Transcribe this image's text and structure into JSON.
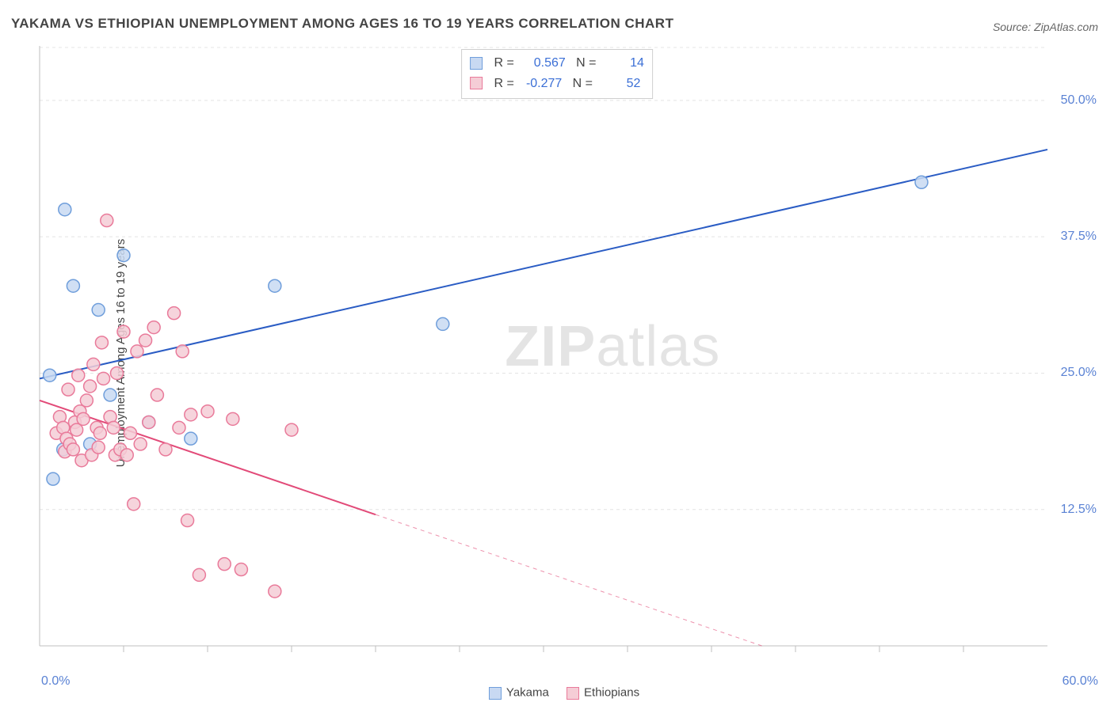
{
  "title": "YAKAMA VS ETHIOPIAN UNEMPLOYMENT AMONG AGES 16 TO 19 YEARS CORRELATION CHART",
  "source": "Source: ZipAtlas.com",
  "ylabel": "Unemployment Among Ages 16 to 19 years",
  "watermark_bold": "ZIP",
  "watermark_rest": "atlas",
  "chart": {
    "type": "scatter-with-regression",
    "background_color": "#ffffff",
    "grid_color": "#e4e4e4",
    "axis_color": "#bfbfbf",
    "tick_color": "#bfbfbf",
    "ytick_label_color": "#5a82d4",
    "xtick_label_color": "#5a82d4",
    "title_color": "#444444",
    "title_fontsize": 17,
    "label_fontsize": 15,
    "tick_fontsize": 16,
    "xlim": [
      0,
      60
    ],
    "ylim": [
      0,
      55
    ],
    "y_ticks": [
      12.5,
      25.0,
      37.5,
      50.0
    ],
    "y_tick_labels": [
      "12.5%",
      "25.0%",
      "37.5%",
      "50.0%"
    ],
    "x_minor_ticks": [
      5,
      10,
      15,
      20,
      25,
      30,
      35,
      40,
      45,
      50,
      55
    ],
    "x_left_label": "0.0%",
    "x_right_label": "60.0%",
    "marker_radius": 8,
    "marker_stroke_width": 1.5,
    "line_width": 2,
    "series": [
      {
        "name": "Yakama",
        "color_fill": "#c8d9f2",
        "color_stroke": "#6f9edb",
        "line_color": "#2a5cc4",
        "R": "0.567",
        "N": "14",
        "reg_line": {
          "x1": 0,
          "y1": 24.5,
          "x2": 60,
          "y2": 45.5,
          "solid_until_x": 60
        },
        "points": [
          [
            0.6,
            24.8
          ],
          [
            0.8,
            15.3
          ],
          [
            1.4,
            18.0
          ],
          [
            1.5,
            40.0
          ],
          [
            2.0,
            33.0
          ],
          [
            3.5,
            30.8
          ],
          [
            4.2,
            23.0
          ],
          [
            5.0,
            35.8
          ],
          [
            6.5,
            20.5
          ],
          [
            9.0,
            19.0
          ],
          [
            14.0,
            33.0
          ],
          [
            24.0,
            29.5
          ],
          [
            52.5,
            42.5
          ],
          [
            3.0,
            18.5
          ]
        ]
      },
      {
        "name": "Ethiopians",
        "color_fill": "#f5cdd6",
        "color_stroke": "#e97a9a",
        "line_color": "#e24a78",
        "R": "-0.277",
        "N": "52",
        "reg_line": {
          "x1": 0,
          "y1": 22.5,
          "x2": 43,
          "y2": 0,
          "solid_until_x": 20
        },
        "points": [
          [
            1.0,
            19.5
          ],
          [
            1.2,
            21.0
          ],
          [
            1.4,
            20.0
          ],
          [
            1.5,
            17.8
          ],
          [
            1.6,
            19.0
          ],
          [
            1.7,
            23.5
          ],
          [
            1.8,
            18.5
          ],
          [
            2.0,
            18.0
          ],
          [
            2.1,
            20.5
          ],
          [
            2.2,
            19.8
          ],
          [
            2.3,
            24.8
          ],
          [
            2.4,
            21.5
          ],
          [
            2.5,
            17.0
          ],
          [
            2.6,
            20.8
          ],
          [
            2.8,
            22.5
          ],
          [
            3.0,
            23.8
          ],
          [
            3.1,
            17.5
          ],
          [
            3.2,
            25.8
          ],
          [
            3.4,
            20.0
          ],
          [
            3.5,
            18.2
          ],
          [
            3.6,
            19.5
          ],
          [
            3.7,
            27.8
          ],
          [
            3.8,
            24.5
          ],
          [
            4.0,
            39.0
          ],
          [
            4.2,
            21.0
          ],
          [
            4.4,
            20.0
          ],
          [
            4.5,
            17.5
          ],
          [
            4.6,
            25.0
          ],
          [
            4.8,
            18.0
          ],
          [
            5.0,
            28.8
          ],
          [
            5.2,
            17.5
          ],
          [
            5.4,
            19.5
          ],
          [
            5.6,
            13.0
          ],
          [
            5.8,
            27.0
          ],
          [
            6.0,
            18.5
          ],
          [
            6.3,
            28.0
          ],
          [
            6.5,
            20.5
          ],
          [
            6.8,
            29.2
          ],
          [
            7.0,
            23.0
          ],
          [
            7.5,
            18.0
          ],
          [
            8.0,
            30.5
          ],
          [
            8.3,
            20.0
          ],
          [
            8.5,
            27.0
          ],
          [
            9.0,
            21.2
          ],
          [
            9.5,
            6.5
          ],
          [
            10.0,
            21.5
          ],
          [
            11.0,
            7.5
          ],
          [
            11.5,
            20.8
          ],
          [
            12.0,
            7.0
          ],
          [
            14.0,
            5.0
          ],
          [
            15.0,
            19.8
          ],
          [
            8.8,
            11.5
          ]
        ]
      }
    ],
    "legend_bottom": [
      {
        "label": "Yakama",
        "fill": "#c8d9f2",
        "stroke": "#6f9edb"
      },
      {
        "label": "Ethiopians",
        "fill": "#f5cdd6",
        "stroke": "#e97a9a"
      }
    ]
  }
}
